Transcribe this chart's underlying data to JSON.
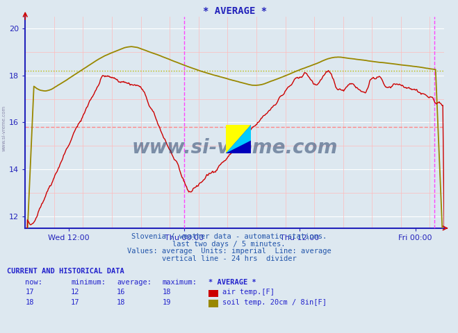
{
  "title": "* AVERAGE *",
  "bg_color": "#dde8f0",
  "plot_bg_color": "#dde8f0",
  "air_color": "#cc0000",
  "soil_color": "#998800",
  "avg_line_air_color": "#ff8888",
  "avg_line_soil_color": "#bbbb00",
  "vline_color": "#ff44ff",
  "axis_color": "#2222bb",
  "tick_color": "#2222bb",
  "grid_white_color": "#ffffff",
  "grid_pink_color": "#ffbbbb",
  "xlabel_ticks": [
    "Wed 12:00",
    "Thu 00:00",
    "Thu 12:00",
    "Fri 00:00"
  ],
  "ylim": [
    11.5,
    20.5
  ],
  "yticks": [
    12,
    14,
    16,
    18,
    20
  ],
  "air_avg": 15.8,
  "soil_avg": 18.2,
  "subtitle1": "Slovenia / weather data - automatic stations.",
  "subtitle2": "last two days / 5 minutes.",
  "subtitle3": "Values: average  Units: imperial  Line: average",
  "subtitle4": "vertical line - 24 hrs  divider",
  "legend_title": "CURRENT AND HISTORICAL DATA",
  "legend_headers": [
    "now:",
    "minimum:",
    "average:",
    "maximum:",
    "* AVERAGE *"
  ],
  "air_now": 17,
  "air_min": 12,
  "air_avg_val": 16,
  "air_max": 18,
  "soil_now": 18,
  "soil_min": 17,
  "soil_avg_val": 18,
  "soil_max": 19,
  "air_label": "air temp.[F]",
  "soil_label": "soil temp. 20cm / 8in[F]",
  "total_hours": 43.5,
  "xtick_hours": [
    4.5,
    16.5,
    28.5,
    40.5
  ],
  "vline1_hour": 16.5,
  "vline2_hour": 42.5,
  "n_points": 580
}
